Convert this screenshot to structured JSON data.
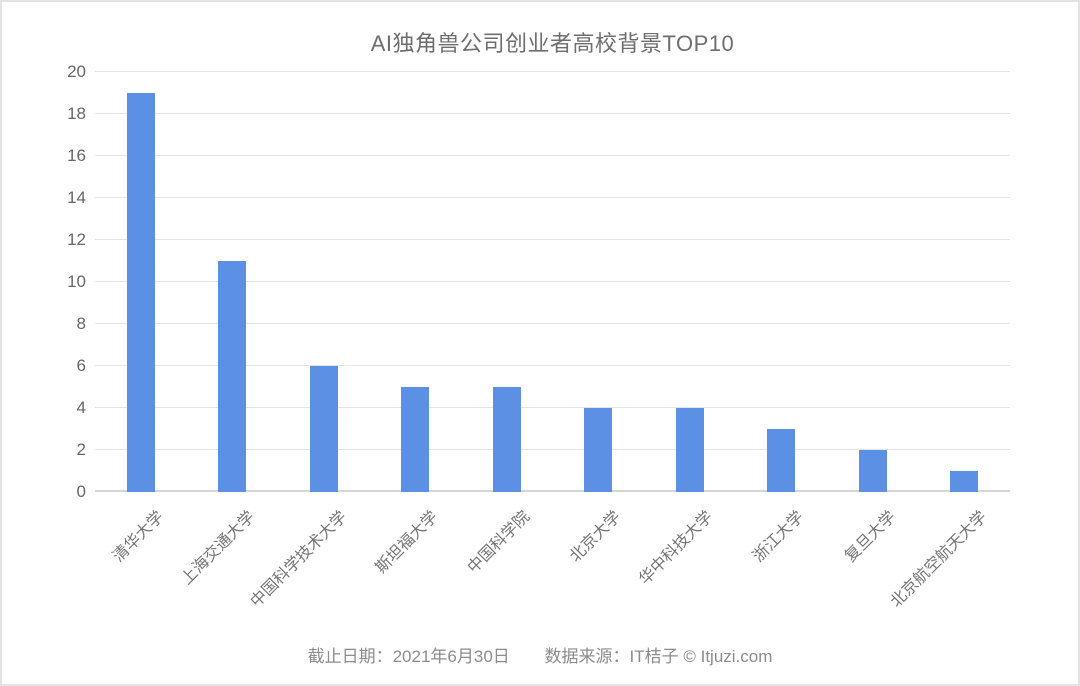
{
  "page": {
    "background": "#ffffff",
    "frame_border_color": "#e3e3e3"
  },
  "chart_data": {
    "type": "bar",
    "title": "AI独角兽公司创业者高校背景TOP10",
    "categories": [
      "清华大学",
      "上海交通大学",
      "中国科学技术大学",
      "斯坦福大学",
      "中国科学院",
      "北京大学",
      "华中科技大学",
      "浙江大学",
      "复旦大学",
      "北京航空航天大学"
    ],
    "values": [
      19,
      11,
      6,
      5,
      5,
      4,
      4,
      3,
      2,
      1
    ],
    "xlabel": "",
    "ylabel": "",
    "ylim": [
      0,
      20
    ],
    "yticks": [
      0,
      2,
      4,
      6,
      8,
      10,
      12,
      14,
      16,
      18,
      20
    ],
    "grid": true,
    "legend_position": "none",
    "bar_color": "#5b90e4",
    "grid_color": "#e4e4e4",
    "axis_line_color": "#d6d6d6",
    "x_label_rotation_deg": 45
  },
  "footer": {
    "date_label": "截止日期：2021年6月30日",
    "source_label": "数据来源：IT桔子 © Itjuzi.com"
  }
}
